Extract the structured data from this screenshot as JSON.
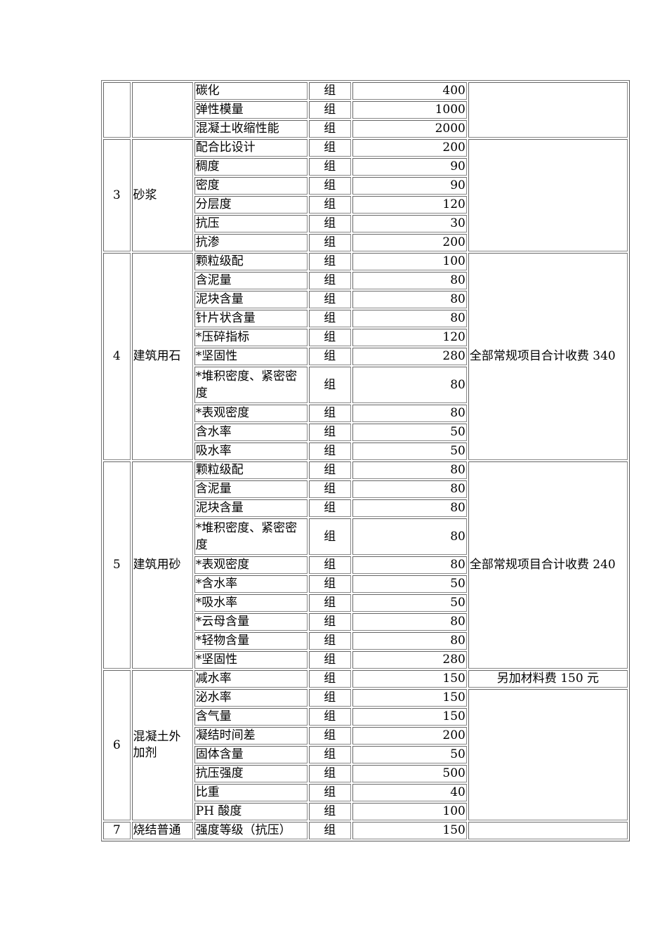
{
  "table": {
    "groups": [
      {
        "no": "",
        "name": "",
        "notes": [
          {
            "text": "",
            "span": 3
          }
        ],
        "items": [
          {
            "name": "碳化",
            "unit": "组",
            "price": "400"
          },
          {
            "name": "弹性模量",
            "unit": "组",
            "price": "1000"
          },
          {
            "name": "混凝土收缩性能",
            "unit": "组",
            "price": "2000"
          }
        ]
      },
      {
        "no": "3",
        "name": "砂浆",
        "notes": [
          {
            "text": "",
            "span": 6
          }
        ],
        "items": [
          {
            "name": "配合比设计",
            "unit": "组",
            "price": "200"
          },
          {
            "name": "稠度",
            "unit": "组",
            "price": "90"
          },
          {
            "name": "密度",
            "unit": "组",
            "price": "90"
          },
          {
            "name": "分层度",
            "unit": "组",
            "price": "120"
          },
          {
            "name": "抗压",
            "unit": "组",
            "price": "30"
          },
          {
            "name": "抗渗",
            "unit": "组",
            "price": "200"
          }
        ]
      },
      {
        "no": "4",
        "name": "建筑用石",
        "notes": [
          {
            "text": "全部常规项目合计收费 340",
            "span": 10
          }
        ],
        "items": [
          {
            "name": "颗粒级配",
            "unit": "组",
            "price": "100"
          },
          {
            "name": "含泥量",
            "unit": "组",
            "price": "80"
          },
          {
            "name": "泥块含量",
            "unit": "组",
            "price": "80"
          },
          {
            "name": "针片状含量",
            "unit": "组",
            "price": "80"
          },
          {
            "name": "*压碎指标",
            "unit": "组",
            "price": "120"
          },
          {
            "name": "*坚固性",
            "unit": "组",
            "price": "280"
          },
          {
            "name": "*堆积密度、紧密密度",
            "unit": "组",
            "price": "80",
            "tall": true
          },
          {
            "name": "*表观密度",
            "unit": "组",
            "price": "80"
          },
          {
            "name": "含水率",
            "unit": "组",
            "price": "50"
          },
          {
            "name": "吸水率",
            "unit": "组",
            "price": "50"
          }
        ]
      },
      {
        "no": "5",
        "name": "建筑用砂",
        "notes": [
          {
            "text": "全部常规项目合计收费 240",
            "span": 10
          }
        ],
        "items": [
          {
            "name": "颗粒级配",
            "unit": "组",
            "price": "80"
          },
          {
            "name": "含泥量",
            "unit": "组",
            "price": "80"
          },
          {
            "name": "泥块含量",
            "unit": "组",
            "price": "80"
          },
          {
            "name": "*堆积密度、紧密密度",
            "unit": "组",
            "price": "80",
            "tall": true
          },
          {
            "name": "*表观密度",
            "unit": "组",
            "price": "80"
          },
          {
            "name": "*含水率",
            "unit": "组",
            "price": "50"
          },
          {
            "name": "*吸水率",
            "unit": "组",
            "price": "50"
          },
          {
            "name": "*云母含量",
            "unit": "组",
            "price": "80"
          },
          {
            "name": "*轻物含量",
            "unit": "组",
            "price": "80"
          },
          {
            "name": "*坚固性",
            "unit": "组",
            "price": "280"
          }
        ]
      },
      {
        "no": "6",
        "name": "混凝土外加剂",
        "notes": [
          {
            "text": "另加材料费 150 元",
            "span": 1,
            "center": true
          },
          {
            "text": "",
            "span": 7
          }
        ],
        "items": [
          {
            "name": "减水率",
            "unit": "组",
            "price": "150"
          },
          {
            "name": "泌水率",
            "unit": "组",
            "price": "150"
          },
          {
            "name": "含气量",
            "unit": "组",
            "price": "150"
          },
          {
            "name": "凝结时间差",
            "unit": "组",
            "price": "200"
          },
          {
            "name": "固体含量",
            "unit": "组",
            "price": "50"
          },
          {
            "name": "抗压强度",
            "unit": "组",
            "price": "500"
          },
          {
            "name": "比重",
            "unit": "组",
            "price": "40"
          },
          {
            "name": "PH 酸度",
            "unit": "组",
            "price": "100"
          }
        ]
      },
      {
        "no": "7",
        "name": "烧结普通",
        "notes": [
          {
            "text": "",
            "span": 1
          }
        ],
        "items": [
          {
            "name": "强度等级（抗压）",
            "unit": "组",
            "price": "150"
          }
        ]
      }
    ]
  }
}
